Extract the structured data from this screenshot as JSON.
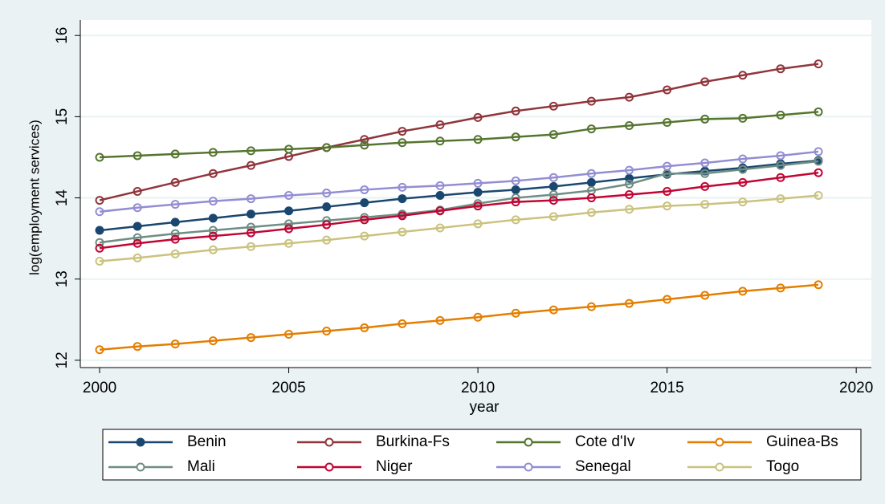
{
  "chart_data": {
    "type": "line",
    "x_label": "year",
    "y_label": "log(employment services)",
    "x": [
      2000,
      2001,
      2002,
      2003,
      2004,
      2005,
      2006,
      2007,
      2008,
      2009,
      2010,
      2011,
      2012,
      2013,
      2014,
      2015,
      2016,
      2017,
      2018,
      2019
    ],
    "xlim": [
      1999.49,
      2020.4
    ],
    "xticks": [
      2000,
      2005,
      2010,
      2015,
      2020
    ],
    "ylim": [
      11.91,
      16.19
    ],
    "yticks": [
      12,
      13,
      14,
      15,
      16
    ],
    "grid": true,
    "legend": "bottom",
    "series": [
      {
        "name": "Benin",
        "color": "#1a476f",
        "marker": "filled",
        "values": [
          13.6,
          13.65,
          13.7,
          13.75,
          13.8,
          13.84,
          13.89,
          13.94,
          13.99,
          14.03,
          14.07,
          14.1,
          14.14,
          14.19,
          14.24,
          14.29,
          14.33,
          14.37,
          14.42,
          14.46
        ]
      },
      {
        "name": "Burkina-Fs",
        "color": "#90353b",
        "marker": "hollow",
        "values": [
          13.97,
          14.08,
          14.19,
          14.3,
          14.4,
          14.51,
          14.62,
          14.72,
          14.82,
          14.9,
          14.99,
          15.07,
          15.13,
          15.19,
          15.24,
          15.33,
          15.43,
          15.51,
          15.59,
          15.65
        ]
      },
      {
        "name": "Cote d'Iv",
        "color": "#55752f",
        "marker": "hollow",
        "values": [
          14.5,
          14.52,
          14.54,
          14.56,
          14.58,
          14.6,
          14.62,
          14.65,
          14.68,
          14.7,
          14.72,
          14.75,
          14.78,
          14.85,
          14.89,
          14.93,
          14.97,
          14.98,
          15.02,
          15.06
        ]
      },
      {
        "name": "Guinea-Bs",
        "color": "#e37e00",
        "marker": "hollow",
        "values": [
          12.13,
          12.17,
          12.2,
          12.24,
          12.28,
          12.32,
          12.36,
          12.4,
          12.45,
          12.49,
          12.53,
          12.58,
          12.62,
          12.66,
          12.7,
          12.75,
          12.8,
          12.85,
          12.89,
          12.93
        ]
      },
      {
        "name": "Mali",
        "color": "#6e8e84",
        "marker": "hollow",
        "values": [
          13.45,
          13.51,
          13.56,
          13.6,
          13.64,
          13.68,
          13.72,
          13.76,
          13.8,
          13.85,
          13.93,
          14.0,
          14.04,
          14.09,
          14.17,
          14.3,
          14.3,
          14.35,
          14.4,
          14.45
        ]
      },
      {
        "name": "Niger",
        "color": "#c10534",
        "marker": "hollow",
        "values": [
          13.38,
          13.44,
          13.49,
          13.53,
          13.57,
          13.62,
          13.67,
          13.73,
          13.78,
          13.84,
          13.9,
          13.95,
          13.97,
          14.0,
          14.04,
          14.08,
          14.14,
          14.19,
          14.25,
          14.31
        ]
      },
      {
        "name": "Senegal",
        "color": "#938dd2",
        "marker": "hollow",
        "values": [
          13.83,
          13.88,
          13.92,
          13.96,
          13.99,
          14.03,
          14.06,
          14.1,
          14.13,
          14.15,
          14.18,
          14.21,
          14.25,
          14.3,
          14.34,
          14.39,
          14.43,
          14.48,
          14.52,
          14.57
        ]
      },
      {
        "name": "Togo",
        "color": "#cac27e",
        "marker": "hollow",
        "values": [
          13.22,
          13.26,
          13.31,
          13.36,
          13.4,
          13.44,
          13.48,
          13.53,
          13.58,
          13.63,
          13.68,
          13.73,
          13.77,
          13.82,
          13.86,
          13.9,
          13.92,
          13.95,
          13.99,
          14.03
        ]
      }
    ]
  }
}
